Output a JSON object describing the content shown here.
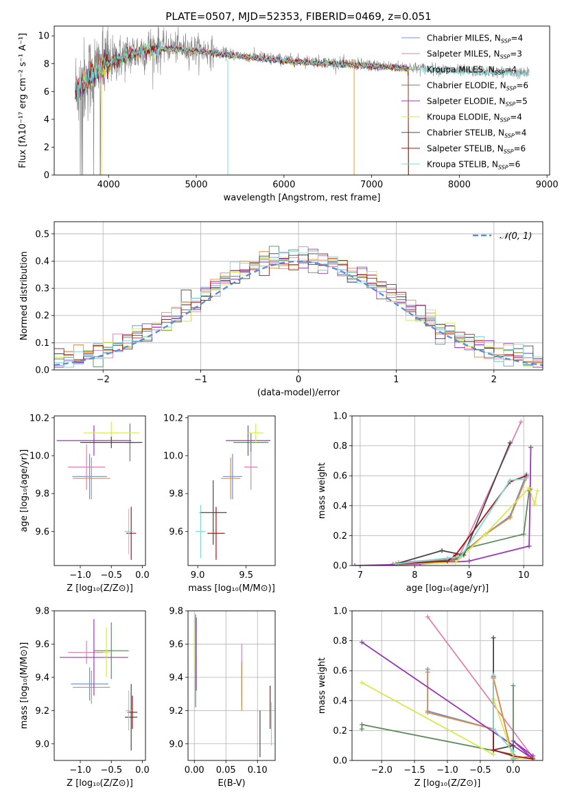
{
  "figure": {
    "title": "PLATE=0507, MJD=52353, FIBERID=0469, z=0.051"
  },
  "models": [
    {
      "name": "Chabrier MILES",
      "n_ssp": "4",
      "color": "#6a8fd8"
    },
    {
      "name": "Salpeter MILES",
      "n_ssp": "3",
      "color": "#e07fb0"
    },
    {
      "name": "Kroupa MILES",
      "n_ssp": "4",
      "color": "#e08a3c"
    },
    {
      "name": "Chabrier ELODIE",
      "n_ssp": "6",
      "color": "#5b8a5b"
    },
    {
      "name": "Salpeter ELODIE",
      "n_ssp": "5",
      "color": "#9a35b8"
    },
    {
      "name": "Kroupa ELODIE",
      "n_ssp": "4",
      "color": "#d8e84a"
    },
    {
      "name": "Chabrier STELIB",
      "n_ssp": "4",
      "color": "#444444"
    },
    {
      "name": "Salpeter STELIB",
      "n_ssp": "6",
      "color": "#aa1111"
    },
    {
      "name": "Kroupa STELIB",
      "n_ssp": "6",
      "color": "#7dd8d8"
    }
  ],
  "legend_suffix": "N",
  "legend_sub": "SSP",
  "chart_data": [
    {
      "id": "spectrum",
      "type": "line",
      "xlabel": "wavelength [Angstrom, rest frame]",
      "ylabel": "Flux [fλ10⁻¹⁷ erg cm⁻² s⁻¹ A⁻¹]",
      "xlim": [
        3380,
        9030
      ],
      "ylim": [
        0,
        10.7
      ],
      "xticks": [
        4000,
        5000,
        6000,
        7000,
        8000,
        9000
      ],
      "yticks": [
        0,
        2,
        4,
        6,
        8,
        10
      ],
      "data_color": "#808080",
      "data_range": [
        3620,
        8800
      ],
      "continuum": [
        [
          3620,
          6.2
        ],
        [
          3700,
          6.6
        ],
        [
          3900,
          7.8
        ],
        [
          4100,
          8.4
        ],
        [
          4400,
          9.0
        ],
        [
          4700,
          9.2
        ],
        [
          5000,
          9.0
        ],
        [
          5500,
          8.6
        ],
        [
          6000,
          8.3
        ],
        [
          6500,
          8.1
        ],
        [
          7000,
          7.9
        ],
        [
          7500,
          7.7
        ],
        [
          8000,
          7.5
        ],
        [
          8500,
          7.4
        ],
        [
          8800,
          7.3
        ]
      ],
      "model_range": [
        3620,
        7420
      ],
      "model_tail": {
        "model": "Kroupa STELIB",
        "x": [
          7420,
          8800
        ]
      }
    },
    {
      "id": "residuals",
      "type": "histogram",
      "xlabel": "(data-model)/error",
      "ylabel": "Normed distribution",
      "xlim": [
        -2.5,
        2.5
      ],
      "ylim": [
        0,
        0.545
      ],
      "xticks": [
        -2,
        -1,
        0,
        1,
        2
      ],
      "yticks": [
        0.0,
        0.1,
        0.2,
        0.3,
        0.4,
        0.5
      ],
      "grid": true,
      "bin_width": 0.1,
      "reference": {
        "label": "𝒩(0, 1)",
        "color": "#5b8dd9",
        "style": "dashed",
        "mu": 0,
        "sigma": 1
      },
      "legend_position": "top-right"
    },
    {
      "id": "age-vs-z",
      "type": "errorbar",
      "xlabel": "Z [log₁₀(Z/Z⊙)]",
      "ylabel": "age  [log₁₀(age/yr)]",
      "xlim": [
        -1.42,
        0.05
      ],
      "ylim": [
        9.42,
        10.21
      ],
      "xticks": [
        -1.0,
        -0.5,
        0.0
      ],
      "yticks": [
        9.6,
        9.8,
        10.0,
        10.2
      ],
      "points": [
        {
          "model": "Chabrier MILES",
          "x": -0.85,
          "xerr": 0.28,
          "y": 9.89,
          "yerr": 0.12
        },
        {
          "model": "Salpeter MILES",
          "x": -0.9,
          "xerr": 0.3,
          "y": 9.94,
          "yerr": 0.12
        },
        {
          "model": "Kroupa MILES",
          "x": -0.82,
          "xerr": 0.3,
          "y": 9.88,
          "yerr": 0.11
        },
        {
          "model": "Chabrier ELODIE",
          "x": -0.2,
          "xerr": 0.05,
          "y": 10.07,
          "yerr": 0.1
        },
        {
          "model": "Salpeter ELODIE",
          "x": -0.78,
          "xerr": 0.6,
          "y": 10.08,
          "yerr": 0.08
        },
        {
          "model": "Kroupa ELODIE",
          "x": -0.5,
          "xerr": 0.45,
          "y": 10.12,
          "yerr": 0.06
        },
        {
          "model": "Chabrier STELIB",
          "x": -0.5,
          "xerr": 0.5,
          "y": 10.07,
          "yerr": 0.03
        },
        {
          "model": "Salpeter STELIB",
          "x": -0.18,
          "xerr": 0.08,
          "y": 9.59,
          "yerr": 0.14
        },
        {
          "model": "Kroupa STELIB",
          "x": -0.22,
          "xerr": 0.07,
          "y": 9.6,
          "yerr": 0.12
        }
      ]
    },
    {
      "id": "age-vs-mass",
      "type": "errorbar",
      "xlabel": "mass [log₁₀(M/M⊙)]",
      "ylabel": "",
      "xlim": [
        8.9,
        9.8
      ],
      "ylim": [
        9.42,
        10.21
      ],
      "xticks": [
        9.0,
        9.5
      ],
      "yticks": [
        9.6,
        9.8,
        10.0,
        10.2
      ],
      "points": [
        {
          "model": "Chabrier MILES",
          "x": 9.36,
          "xerr": 0.1,
          "y": 9.89,
          "yerr": 0.12
        },
        {
          "model": "Salpeter MILES",
          "x": 9.55,
          "xerr": 0.07,
          "y": 9.94,
          "yerr": 0.12
        },
        {
          "model": "Kroupa MILES",
          "x": 9.34,
          "xerr": 0.1,
          "y": 9.88,
          "yerr": 0.11
        },
        {
          "model": "Chabrier ELODIE",
          "x": 9.55,
          "xerr": 0.18,
          "y": 10.07,
          "yerr": 0.05
        },
        {
          "model": "Salpeter ELODIE",
          "x": 9.52,
          "xerr": 0.23,
          "y": 10.08,
          "yerr": 0.08
        },
        {
          "model": "Kroupa ELODIE",
          "x": 9.6,
          "xerr": 0.08,
          "y": 10.12,
          "yerr": 0.05
        },
        {
          "model": "Chabrier STELIB",
          "x": 9.16,
          "xerr": 0.14,
          "y": 9.7,
          "yerr": 0.17
        },
        {
          "model": "Salpeter STELIB",
          "x": 9.19,
          "xerr": 0.09,
          "y": 9.59,
          "yerr": 0.14
        },
        {
          "model": "Kroupa STELIB",
          "x": 9.03,
          "xerr": 0.05,
          "y": 9.6,
          "yerr": 0.14
        }
      ]
    },
    {
      "id": "weight-vs-age",
      "type": "line",
      "xlabel": "age  [log₁₀(age/yr)]",
      "ylabel": "mass weight",
      "xlim": [
        6.85,
        10.35
      ],
      "ylim": [
        0,
        1.0
      ],
      "xticks": [
        7,
        8,
        9,
        10
      ],
      "yticks": [
        0.0,
        0.2,
        0.4,
        0.6,
        0.8,
        1.0
      ],
      "grid": true,
      "series": [
        {
          "model": "Chabrier MILES",
          "x": [
            7.6,
            8.7,
            9.3,
            9.75,
            10.05
          ],
          "y": [
            0.01,
            0.03,
            0.21,
            0.33,
            0.61
          ]
        },
        {
          "model": "Salpeter MILES",
          "x": [
            7.7,
            8.8,
            9.95
          ],
          "y": [
            0.02,
            0.05,
            0.96
          ]
        },
        {
          "model": "Kroupa MILES",
          "x": [
            7.6,
            8.7,
            9.3,
            9.75,
            10.05
          ],
          "y": [
            0.01,
            0.03,
            0.21,
            0.32,
            0.59
          ]
        },
        {
          "model": "Chabrier ELODIE",
          "x": [
            7.65,
            8.75,
            9.0,
            10.0,
            10.1
          ],
          "y": [
            0.01,
            0.04,
            0.12,
            0.21,
            0.5
          ]
        },
        {
          "model": "Salpeter ELODIE",
          "x": [
            6.9,
            8.1,
            9.0,
            10.1,
            10.12,
            10.13
          ],
          "y": [
            0.0,
            0.01,
            0.03,
            0.13,
            0.51,
            0.79
          ]
        },
        {
          "model": "Kroupa ELODIE",
          "x": [
            7.7,
            8.75,
            9.3,
            10.1,
            10.2,
            10.25
          ],
          "y": [
            0.01,
            0.02,
            0.21,
            0.52,
            0.41,
            0.5
          ]
        },
        {
          "model": "Chabrier STELIB",
          "x": [
            7.65,
            8.5,
            8.9,
            9.75
          ],
          "y": [
            0.01,
            0.1,
            0.07,
            0.82
          ]
        },
        {
          "model": "Salpeter STELIB",
          "x": [
            7.65,
            8.6,
            8.75,
            9.75,
            10.05
          ],
          "y": [
            0.01,
            0.03,
            0.07,
            0.56,
            0.6
          ]
        },
        {
          "model": "Kroupa STELIB",
          "x": [
            7.65,
            8.6,
            8.85,
            9.75,
            10.05
          ],
          "y": [
            0.01,
            0.05,
            0.06,
            0.57,
            0.58
          ]
        }
      ]
    },
    {
      "id": "mass-vs-z",
      "type": "errorbar",
      "xlabel": "Z [log₁₀(Z/Z⊙)]",
      "ylabel": "mass [log₁₀(M/M⊙)]",
      "xlim": [
        -1.42,
        0.05
      ],
      "ylim": [
        8.9,
        9.8
      ],
      "xticks": [
        -1.0,
        -0.5,
        0.0
      ],
      "yticks": [
        9.0,
        9.2,
        9.4,
        9.6,
        9.8
      ],
      "points": [
        {
          "model": "Chabrier MILES",
          "x": -0.85,
          "xerr": 0.3,
          "y": 9.36,
          "yerr": 0.1
        },
        {
          "model": "Salpeter MILES",
          "x": -0.9,
          "xerr": 0.3,
          "y": 9.55,
          "yerr": 0.07
        },
        {
          "model": "Kroupa MILES",
          "x": -0.82,
          "xerr": 0.3,
          "y": 9.34,
          "yerr": 0.1
        },
        {
          "model": "Chabrier ELODIE",
          "x": -0.5,
          "xerr": 0.28,
          "y": 9.56,
          "yerr": 0.17
        },
        {
          "model": "Salpeter ELODIE",
          "x": -0.78,
          "xerr": 0.55,
          "y": 9.52,
          "yerr": 0.23
        },
        {
          "model": "Kroupa ELODIE",
          "x": -0.58,
          "xerr": 0.05,
          "y": 9.55,
          "yerr": 0.15
        },
        {
          "model": "Chabrier STELIB",
          "x": -0.18,
          "xerr": 0.1,
          "y": 9.16,
          "yerr": 0.2
        },
        {
          "model": "Salpeter STELIB",
          "x": -0.16,
          "xerr": 0.08,
          "y": 9.19,
          "yerr": 0.1
        },
        {
          "model": "Kroupa STELIB",
          "x": -0.22,
          "xerr": 0.05,
          "y": 9.2,
          "yerr": 0.12
        }
      ]
    },
    {
      "id": "mass-vs-ebv",
      "type": "errorbar",
      "xlabel": "E(B-V)",
      "ylabel": "",
      "xlim": [
        -0.01,
        0.128
      ],
      "ylim": [
        8.9,
        9.8
      ],
      "xticks": [
        0.0,
        0.05,
        0.1
      ],
      "yticks": [
        9.0,
        9.2,
        9.4,
        9.6,
        9.8
      ],
      "grid": true,
      "points": [
        {
          "model": "Chabrier MILES",
          "x": 0.075,
          "xerr": 0.0,
          "y": 9.36,
          "yerr": 0.14
        },
        {
          "model": "Salpeter MILES",
          "x": 0.075,
          "xerr": 0.0,
          "y": 9.45,
          "yerr": 0.15
        },
        {
          "model": "Kroupa MILES",
          "x": 0.075,
          "xerr": 0.0,
          "y": 9.34,
          "yerr": 0.14
        },
        {
          "model": "Chabrier ELODIE",
          "x": 0.002,
          "xerr": 0.0,
          "y": 9.5,
          "yerr": 0.28
        },
        {
          "model": "Salpeter ELODIE",
          "x": 0.003,
          "xerr": 0.0,
          "y": 9.54,
          "yerr": 0.22
        },
        {
          "model": "Kroupa ELODIE",
          "x": 0.0,
          "xerr": 0.0,
          "y": 9.58,
          "yerr": 0.12
        },
        {
          "model": "Chabrier STELIB",
          "x": 0.104,
          "xerr": 0.0,
          "y": 9.06,
          "yerr": 0.14
        },
        {
          "model": "Salpeter STELIB",
          "x": 0.12,
          "xerr": 0.0,
          "y": 9.22,
          "yerr": 0.13
        },
        {
          "model": "Kroupa STELIB",
          "x": 0.122,
          "xerr": 0.0,
          "y": 9.12,
          "yerr": 0.13
        }
      ]
    },
    {
      "id": "weight-vs-z",
      "type": "line",
      "xlabel": "Z [log₁₀(Z/Z⊙)]",
      "ylabel": "mass weight",
      "xlim": [
        -2.45,
        0.45
      ],
      "ylim": [
        0,
        1.0
      ],
      "xticks": [
        -2.0,
        -1.5,
        -1.0,
        -0.5,
        0.0
      ],
      "yticks": [
        0.0,
        0.2,
        0.4,
        0.6,
        0.8,
        1.0
      ],
      "grid": true,
      "series": [
        {
          "model": "Chabrier MILES",
          "x": [
            -1.3,
            -1.3,
            -0.3,
            -0.3,
            0.0,
            0.3
          ],
          "y": [
            0.61,
            0.33,
            0.21,
            0.55,
            0.01,
            0.03
          ]
        },
        {
          "model": "Salpeter MILES",
          "x": [
            -1.3,
            0.3
          ],
          "y": [
            0.96,
            0.02
          ]
        },
        {
          "model": "Kroupa MILES",
          "x": [
            -1.3,
            -1.3,
            -0.3,
            -0.3,
            0.0,
            0.3
          ],
          "y": [
            0.59,
            0.32,
            0.21,
            0.55,
            0.01,
            0.03
          ]
        },
        {
          "model": "Chabrier ELODIE",
          "x": [
            -2.3,
            -2.3,
            0.0,
            0.0,
            0.0,
            0.0
          ],
          "y": [
            0.21,
            0.24,
            0.04,
            0.5,
            0.01,
            0.02
          ]
        },
        {
          "model": "Salpeter ELODIE",
          "x": [
            -2.3,
            0.3,
            0.0,
            0.3
          ],
          "y": [
            0.79,
            0.01,
            0.13,
            0.03
          ]
        },
        {
          "model": "Kroupa ELODIE",
          "x": [
            -2.3,
            -0.3,
            -0.3,
            0.0,
            0.3
          ],
          "y": [
            0.52,
            0.04,
            0.41,
            0.02,
            0.01
          ]
        },
        {
          "model": "Chabrier STELIB",
          "x": [
            -0.3,
            -0.3,
            0.0,
            0.0
          ],
          "y": [
            0.82,
            0.07,
            0.1,
            0.01
          ]
        },
        {
          "model": "Salpeter STELIB",
          "x": [
            -0.3,
            -0.3,
            0.0,
            0.3
          ],
          "y": [
            0.56,
            0.07,
            0.03,
            0.01
          ]
        },
        {
          "model": "Kroupa STELIB",
          "x": [
            -0.3,
            -0.3,
            0.0,
            0.0
          ],
          "y": [
            0.57,
            0.21,
            0.06,
            0.01
          ]
        }
      ]
    }
  ]
}
